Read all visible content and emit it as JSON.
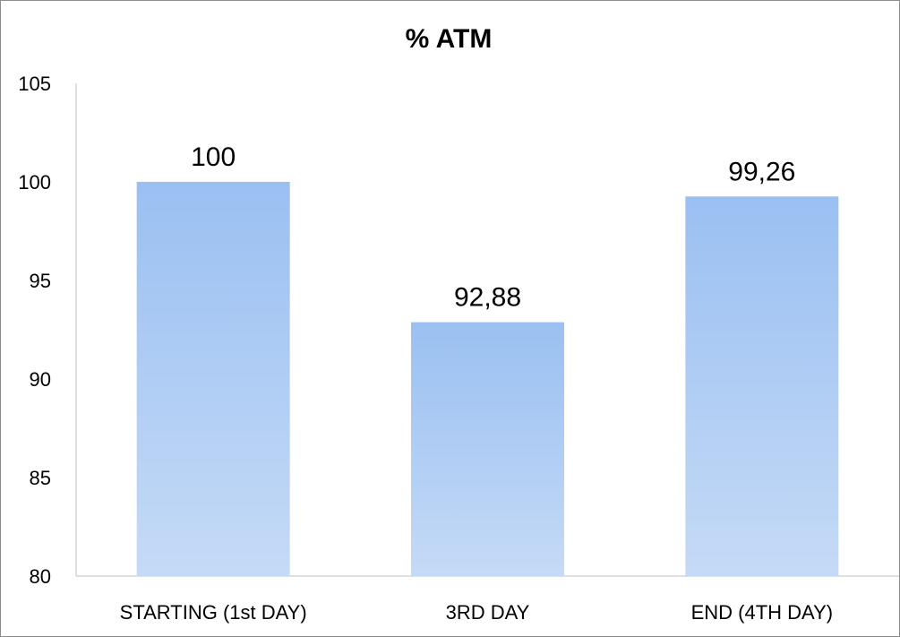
{
  "chart_data": {
    "type": "bar",
    "title": "% ATM",
    "categories": [
      "STARTING (1st DAY)",
      "3RD DAY",
      "END (4TH DAY)"
    ],
    "values": [
      100,
      92.88,
      99.26
    ],
    "data_labels": [
      "100",
      "92,88",
      "99,26"
    ],
    "yticks": [
      "80",
      "85",
      "90",
      "95",
      "100",
      "105"
    ],
    "ylim": [
      80,
      105
    ],
    "xlabel": "",
    "ylabel": "",
    "grid": false,
    "legend": "none",
    "bar_color_top": "#9ac0f2",
    "bar_color_bottom": "#c5daf6"
  }
}
